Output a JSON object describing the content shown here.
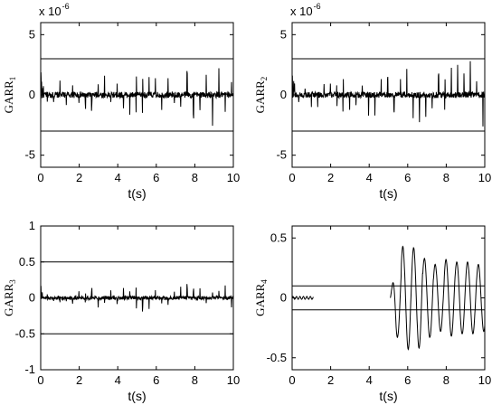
{
  "chart_data": [
    {
      "type": "line",
      "ylabel": "GARR",
      "ylabel_sub": "1",
      "xlabel": "t(s)",
      "xlim": [
        0,
        10
      ],
      "ylim": [
        -6,
        6
      ],
      "xticks": [
        0,
        2,
        4,
        6,
        8,
        10
      ],
      "yticks": [
        -5,
        0,
        5
      ],
      "ytick_labels": [
        "-5",
        "0",
        "5"
      ],
      "exponent_label": "x 10",
      "exponent_power": "-6",
      "thresholds": [
        3,
        -3
      ],
      "signal": {
        "kind": "noise",
        "base": 0.5,
        "spike_period": 0.33,
        "spike_amp": 0.9,
        "spike_growth": 0.12
      }
    },
    {
      "type": "line",
      "ylabel": "GARR",
      "ylabel_sub": "2",
      "xlabel": "t(s)",
      "xlim": [
        0,
        10
      ],
      "ylim": [
        -6,
        6
      ],
      "xticks": [
        0,
        2,
        4,
        6,
        8,
        10
      ],
      "yticks": [
        -5,
        0,
        5
      ],
      "ytick_labels": [
        "-5",
        "0",
        "5"
      ],
      "exponent_label": "x 10",
      "exponent_power": "-6",
      "thresholds": [
        3,
        -3
      ],
      "signal": {
        "kind": "noise",
        "base": 0.5,
        "spike_period": 0.33,
        "spike_amp": 1.0,
        "spike_growth": 0.14
      }
    },
    {
      "type": "line",
      "ylabel": "GARR",
      "ylabel_sub": "3",
      "xlabel": "t(s)",
      "xlim": [
        0,
        10
      ],
      "ylim": [
        -1,
        1
      ],
      "xticks": [
        0,
        2,
        4,
        6,
        8,
        10
      ],
      "yticks": [
        -1,
        -0.5,
        0,
        0.5,
        1
      ],
      "ytick_labels": [
        "-1",
        "-0.5",
        "0",
        "0.5",
        "1"
      ],
      "thresholds": [
        0.5,
        -0.5
      ],
      "signal": {
        "kind": "noise",
        "base": 0.05,
        "spike_period": 0.33,
        "spike_amp": 0.06,
        "spike_growth": 0.02,
        "late_amp": 0.16
      }
    },
    {
      "type": "line",
      "ylabel": "GARR",
      "ylabel_sub": "4",
      "xlabel": "t(s)",
      "xlim": [
        0,
        10
      ],
      "ylim": [
        -0.6,
        0.6
      ],
      "xticks": [
        0,
        2,
        4,
        6,
        8,
        10
      ],
      "yticks": [
        -0.5,
        0,
        0.5
      ],
      "ytick_labels": [
        "-0.5",
        "0",
        "0.5"
      ],
      "thresholds": [
        0.1,
        -0.1
      ],
      "signal": {
        "kind": "oscillation",
        "x_end": 1.1,
        "onset": 5.1,
        "period": 0.56,
        "amplitudes": [
          0.33,
          0.43,
          0.42,
          0.33,
          0.28,
          0.32,
          0.3,
          0.3,
          0.28
        ]
      }
    }
  ]
}
